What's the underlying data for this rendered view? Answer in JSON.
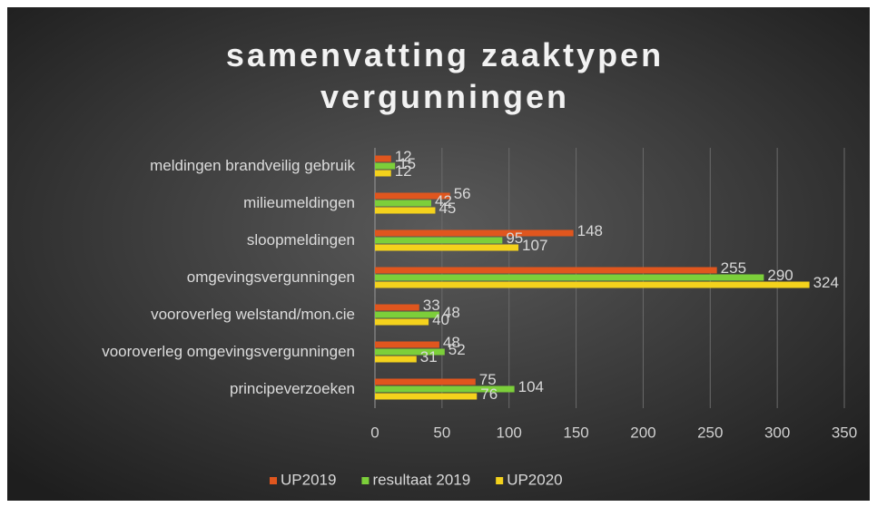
{
  "chart_data": {
    "type": "barh",
    "title": "samenvatting zaaktypen vergunningen",
    "categories": [
      "meldingen brandveilig gebruik",
      "milieumeldingen",
      "sloopmeldingen",
      "omgevingsvergunningen",
      "vooroverleg welstand/mon.cie",
      "vooroverleg omgevingsvergunningen",
      "principeverzoeken"
    ],
    "series": [
      {
        "name": "UP2019",
        "color": "#e0561e",
        "values": [
          12,
          56,
          148,
          255,
          33,
          48,
          75
        ]
      },
      {
        "name": "resultaat 2019",
        "color": "#7ccf3a",
        "values": [
          15,
          42,
          95,
          290,
          48,
          52,
          104
        ]
      },
      {
        "name": "UP2020",
        "color": "#f4d21c",
        "values": [
          12,
          45,
          107,
          324,
          40,
          31,
          76
        ]
      }
    ],
    "xlim": [
      0,
      350
    ],
    "xticks": [
      0,
      50,
      100,
      150,
      200,
      250,
      300,
      350
    ],
    "grid": true,
    "legend": "bottom"
  }
}
